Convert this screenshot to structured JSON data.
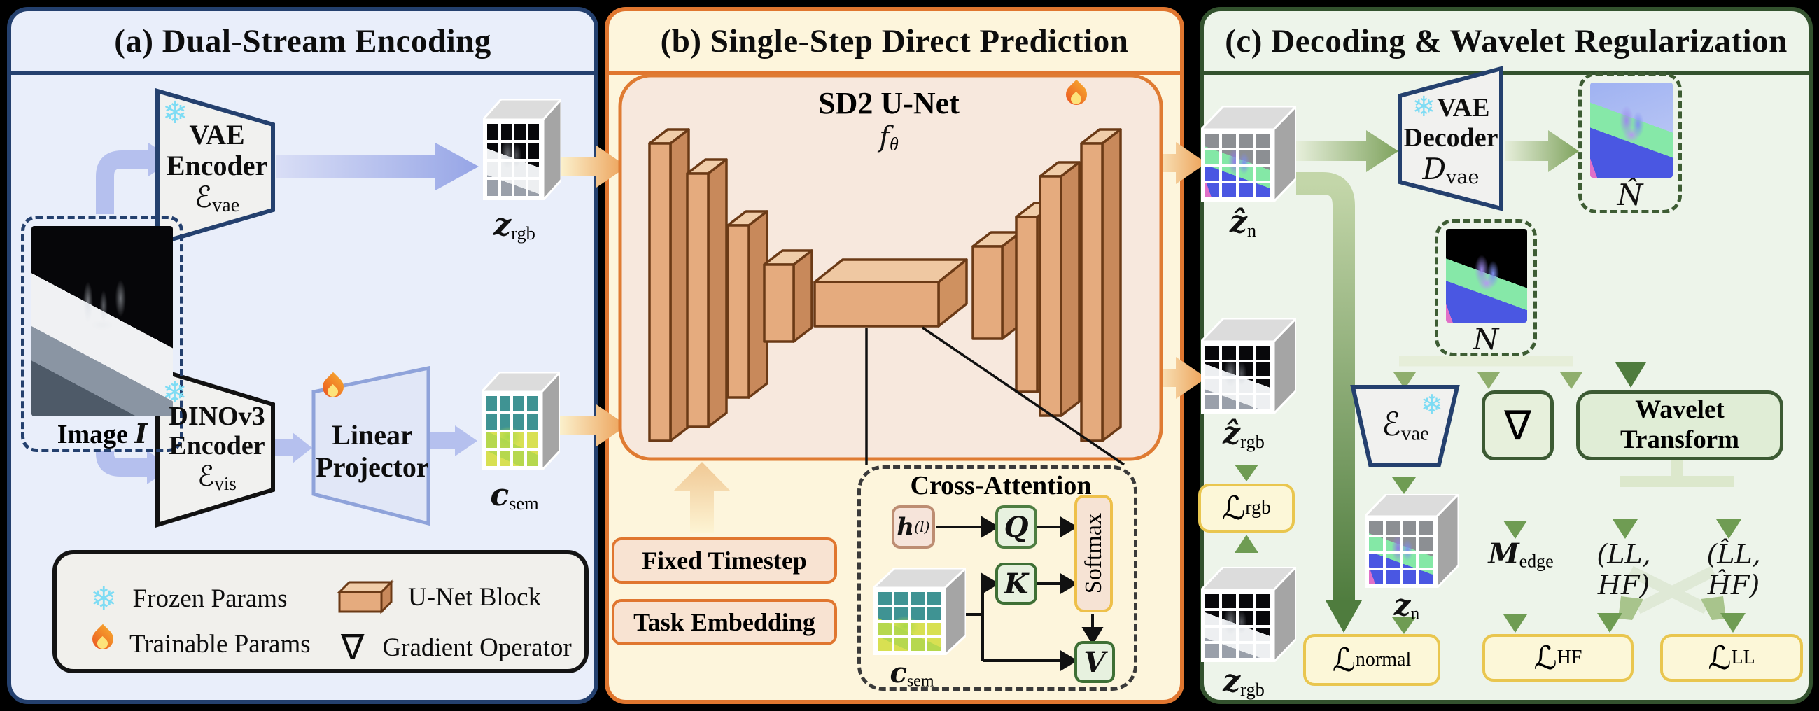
{
  "figure": {
    "panel_a": {
      "title": "(a) Dual-Stream Encoding",
      "image_label_prefix": "Image ",
      "image_label_var": "I",
      "vae_encoder": {
        "line1": "VAE",
        "line2": "Encoder",
        "symbol": "ℰ",
        "symbol_sub": "vae"
      },
      "dino_encoder": {
        "line1": "DINOv3",
        "line2": "Encoder",
        "symbol": "ℰ",
        "symbol_sub": "vis"
      },
      "linear_projector": {
        "line1": "Linear",
        "line2": "Projector"
      },
      "z_rgb": {
        "main": "z",
        "sub": "rgb"
      },
      "c_sem": {
        "main": "c",
        "sub": "sem"
      },
      "legend": {
        "frozen": "Frozen Params",
        "trainable": "Trainable Params",
        "unet": "U-Net  Block",
        "gradient": "Gradient Operator"
      }
    },
    "panel_b": {
      "title": "(b) Single-Step Direct Prediction",
      "unet_name": "SD2 U-Net",
      "f": {
        "main": "f",
        "sub": "θ"
      },
      "fixed_timestep": "Fixed Timestep",
      "task_embedding": "Task Embedding",
      "cross_attention": {
        "title": "Cross-Attention",
        "h": {
          "main": "h",
          "sup": "(l)"
        },
        "q": "Q",
        "k": "K",
        "v": "V",
        "softmax": "Softmax",
        "c_sem": {
          "main": "c",
          "sub": "sem"
        }
      }
    },
    "panel_c": {
      "title": "(c) Decoding & Wavelet Regularization",
      "z_n_hat": {
        "main": "ẑ",
        "sub": "n"
      },
      "vae_decoder": {
        "line1": "VAE",
        "line2": "Decoder",
        "symbol": "D",
        "symbol_sub": "vae"
      },
      "n_hat": "N̂",
      "n": "N",
      "e_vae": {
        "main": "ℰ",
        "sub": "vae"
      },
      "nabla": "∇",
      "wavelet": {
        "line1": "Wavelet",
        "line2": "Transform"
      },
      "z_rgb_hat": {
        "main": "ẑ",
        "sub": "rgb"
      },
      "z_rgb": {
        "main": "z",
        "sub": "rgb"
      },
      "z_n": {
        "main": "z",
        "sub": "n"
      },
      "l_rgb": {
        "main": "ℒ",
        "sub": "rgb"
      },
      "l_normal": {
        "main": "ℒ",
        "sub": "normal"
      },
      "l_hf": {
        "main": "ℒ",
        "sub": "HF"
      },
      "l_ll": {
        "main": "ℒ",
        "sub": "LL"
      },
      "m_edge": {
        "main": "M",
        "sub": "edge"
      },
      "pair": "(LL, HF)",
      "pair_hat": "(L̂L, ĤF)"
    },
    "colors": {
      "panel_a_bg": "#e9eefa",
      "panel_a_border": "#24406e",
      "panel_b_bg": "#fdf5dc",
      "panel_b_border": "#e0762f",
      "panel_c_bg": "#edf4ea",
      "panel_c_border": "#33522e",
      "unet_block": "#e5ab7e",
      "loss_border": "#e9c64f",
      "arrow_blue": "#b5c0ee",
      "arrow_orange": "#ec9f55",
      "arrow_green": "#5d8a47"
    }
  }
}
